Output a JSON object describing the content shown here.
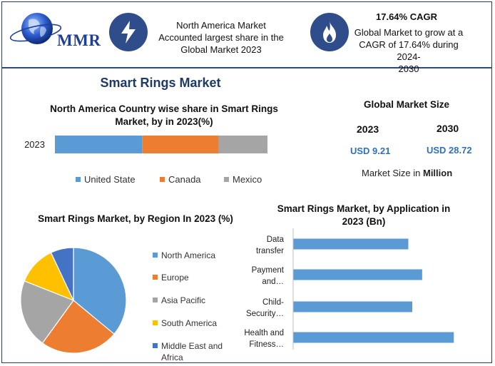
{
  "header": {
    "logo_text": "MMR",
    "badge1_icon": "lightning-bolt-icon",
    "badge1_text": [
      "North America Market",
      "Accounted largest share in the",
      "Global Market 2023"
    ],
    "badge2_icon": "flame-icon",
    "badge2_title": "17.64% CAGR",
    "badge2_text": [
      "Global Market to grow at a",
      "CAGR of 17.64% during 2024-",
      "2030"
    ]
  },
  "title": "Smart Rings Market",
  "global_size": {
    "title": "Global Market Size",
    "years": [
      "2023",
      "2030"
    ],
    "values": [
      "USD 9.21",
      "USD 28.72"
    ],
    "footer_prefix": "Market Size in ",
    "footer_bold": "Million"
  },
  "colors": {
    "blue": "#5b9bd5",
    "orange": "#ed7d31",
    "gray": "#a5a5a5",
    "yellow": "#ffc000",
    "darkblue": "#4472c4"
  },
  "chart_data": [
    {
      "type": "bar",
      "orientation": "horizontal-stacked",
      "title": "North America Country wise share in Smart Rings Market, by in 2023(%)",
      "categories": [
        "2023"
      ],
      "series": [
        {
          "name": "United State",
          "values": [
            41
          ]
        },
        {
          "name": "Canada",
          "values": [
            36
          ]
        },
        {
          "name": "Mexico",
          "values": [
            23
          ]
        }
      ],
      "legend": "bottom"
    },
    {
      "type": "pie",
      "title": "Smart Rings Market, by Region In 2023 (%)",
      "labels": [
        "North America",
        "Europe",
        "Asia Pacific",
        "South America",
        "Middle East and Africa"
      ],
      "values": [
        36,
        24,
        21,
        12,
        7
      ],
      "legend": "right"
    },
    {
      "type": "bar",
      "orientation": "horizontal",
      "title": "Smart Rings Market, by Application in 2023 (Bn)",
      "categories": [
        "Data transfer",
        "Payment and…",
        "Child-Security…",
        "Health and Fitness…"
      ],
      "category_lines": [
        [
          "Data",
          "transfer"
        ],
        [
          "Payment",
          "and…"
        ],
        [
          "Child-",
          "Security…"
        ],
        [
          "Health and",
          "Fitness…"
        ]
      ],
      "values": [
        2.9,
        3.25,
        3.0,
        4.05
      ]
    }
  ]
}
